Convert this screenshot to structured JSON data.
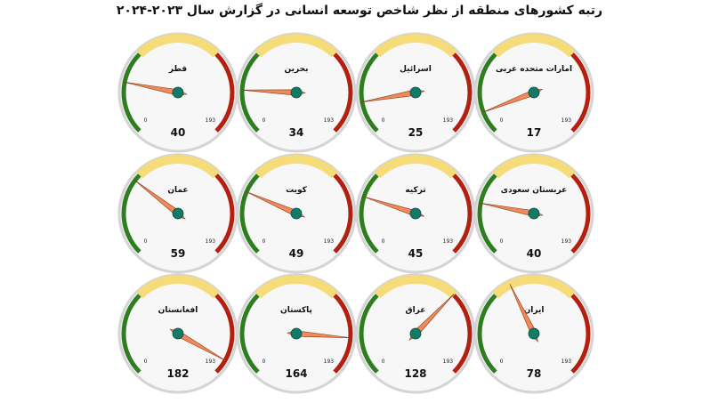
{
  "title": "رتبه کشورهای منطقه از نظر شاخص توسعه انسانی در گزارش سال ۲۰۲۳-۲۰۲۴",
  "colors": {
    "low_arc": "#2e7d1f",
    "mid_arc": "#f6dc78",
    "high_arc": "#b3200f",
    "needle": "#f08a5a",
    "hub": "#127a66",
    "face": "#f7f7f7",
    "rim": "#d4d4d4"
  },
  "chart_data": {
    "type": "gauge",
    "min_label": "0",
    "max_label": "193",
    "min": 0,
    "max": 193,
    "gauges": [
      {
        "name": "امارات متحده عربی",
        "value": 17
      },
      {
        "name": "اسرائیل",
        "value": 25
      },
      {
        "name": "بحرین",
        "value": 34
      },
      {
        "name": "قطر",
        "value": 40
      },
      {
        "name": "عربستان سعودی",
        "value": 40
      },
      {
        "name": "ترکیه",
        "value": 45
      },
      {
        "name": "کویت",
        "value": 49
      },
      {
        "name": "عمان",
        "value": 59
      },
      {
        "name": "ایران",
        "value": 78
      },
      {
        "name": "عراق",
        "value": 128
      },
      {
        "name": "پاکستان",
        "value": 164
      },
      {
        "name": "افغانستان",
        "value": 182
      }
    ]
  }
}
